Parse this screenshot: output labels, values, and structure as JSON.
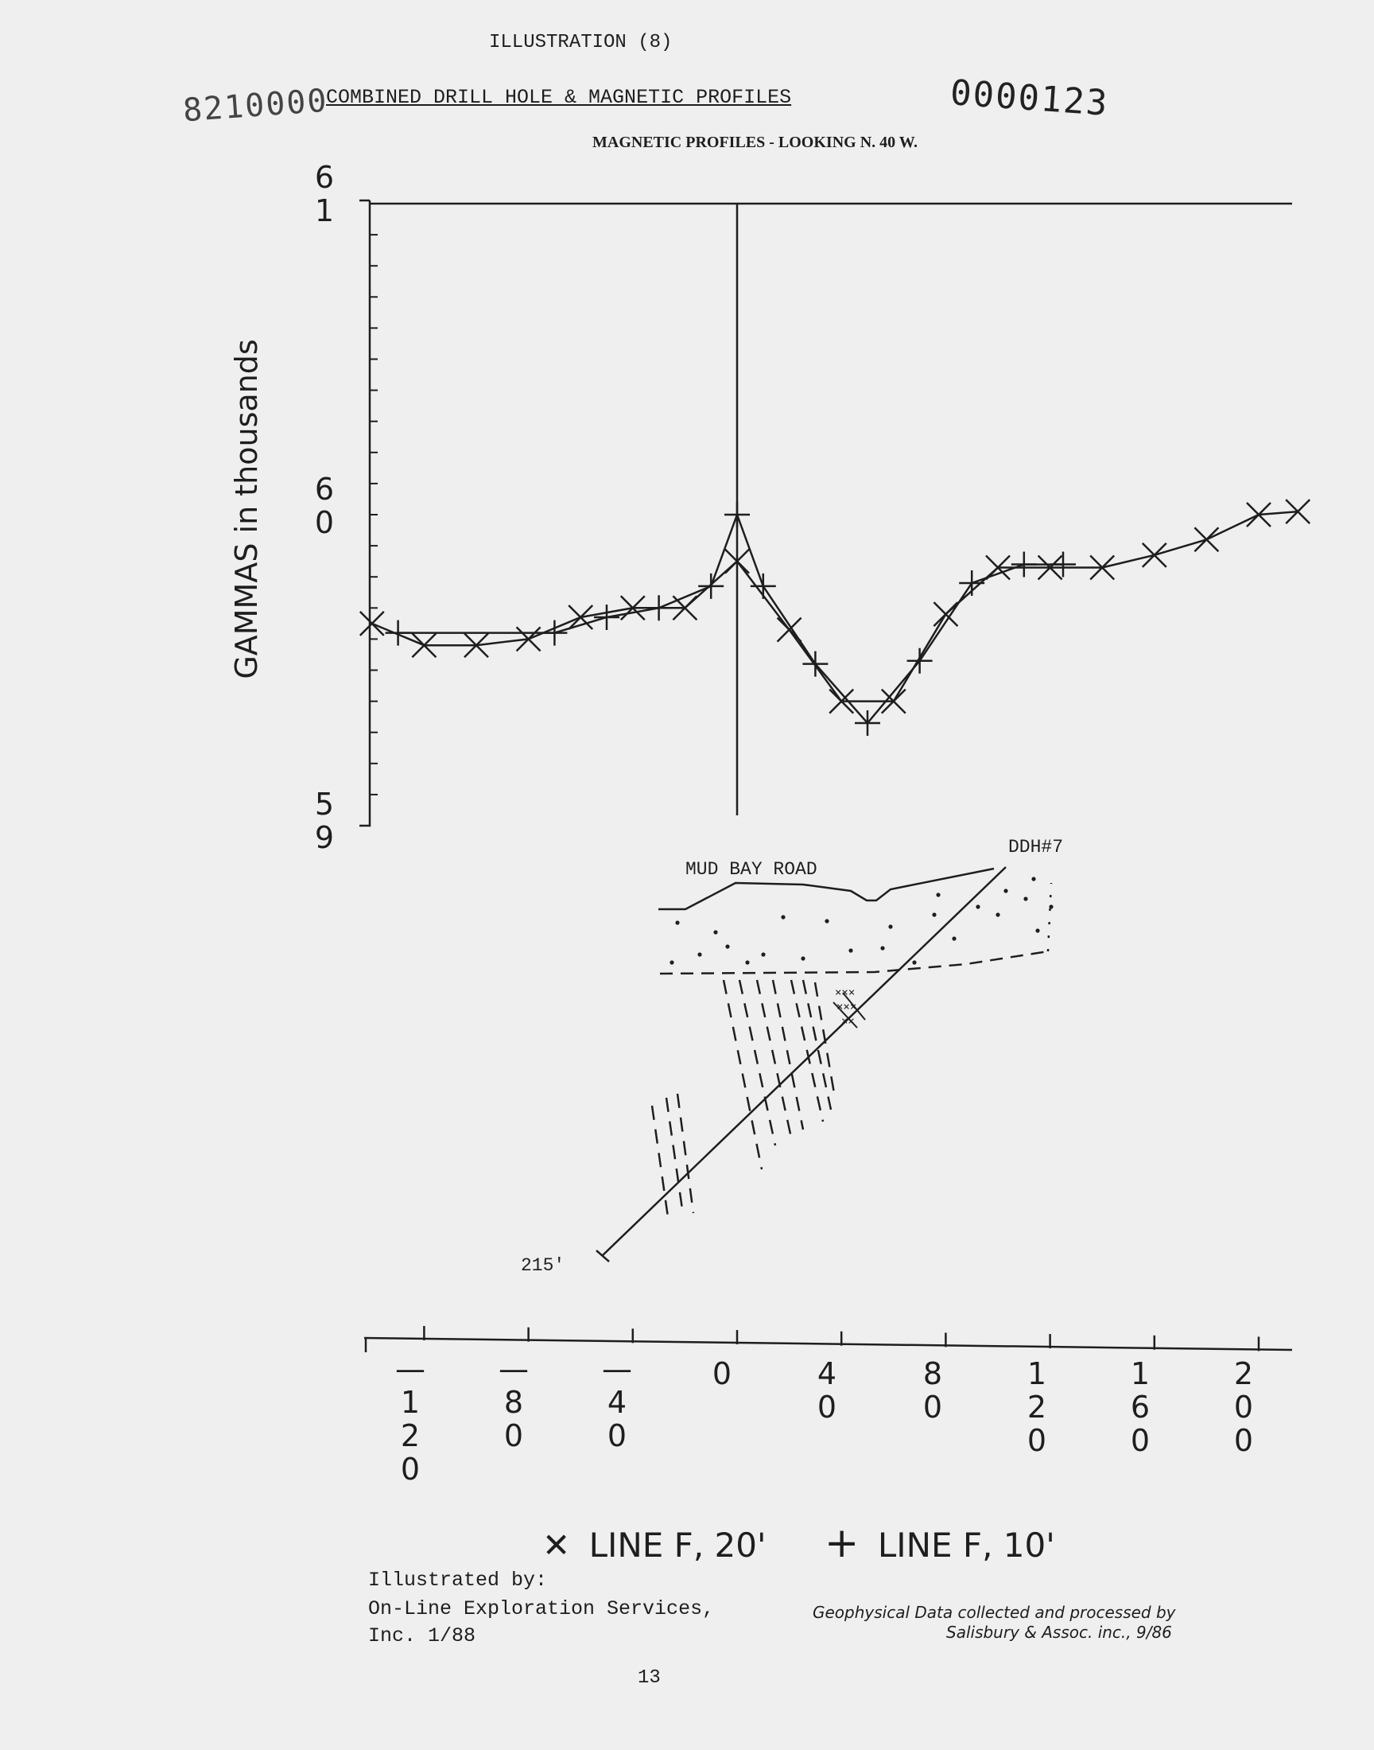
{
  "header": {
    "illustration": "ILLUSTRATION (8)",
    "title": "COMBINED DRILL HOLE & MAGNETIC PROFILES",
    "subtitle": "MAGNETIC PROFILES - LOOKING N. 40 W.",
    "stamp_left": "8210000",
    "stamp_right": "0000123"
  },
  "chart_data": {
    "type": "line",
    "title": "MAGNETIC PROFILES - LOOKING N. 40 W.",
    "ylabel": "GAMMAS in thousands",
    "y_ticks": [
      "61",
      "60",
      "59"
    ],
    "xlim": [
      -140,
      215
    ],
    "ylim": [
      59,
      61
    ],
    "x_ticks": [
      -120,
      -80,
      -40,
      0,
      40,
      80,
      120,
      160,
      200
    ],
    "x_tick_labels": [
      "-120",
      "-80",
      "-40",
      "0",
      "40",
      "80",
      "120",
      "160",
      "200"
    ],
    "grid": false,
    "legend_position": "bottom",
    "series": [
      {
        "name": "LINE F, 20'",
        "marker": "x",
        "x": [
          -140,
          -120,
          -100,
          -80,
          -60,
          -40,
          -20,
          0,
          20,
          40,
          60,
          80,
          100,
          120,
          140,
          160,
          180,
          200,
          215
        ],
        "y": [
          59.65,
          59.58,
          59.58,
          59.6,
          59.67,
          59.7,
          59.7,
          59.85,
          59.63,
          59.4,
          59.4,
          59.68,
          59.83,
          59.83,
          59.83,
          59.87,
          59.92,
          60.0,
          60.01
        ]
      },
      {
        "name": "LINE F, 10'",
        "marker": "+",
        "x": [
          -130,
          -70,
          -50,
          -30,
          -10,
          0,
          10,
          30,
          50,
          70,
          90,
          110,
          125
        ],
        "y": [
          59.62,
          59.62,
          59.67,
          59.7,
          59.77,
          60.0,
          59.77,
          59.52,
          59.33,
          59.53,
          59.78,
          59.84,
          59.84
        ]
      }
    ]
  },
  "x_tick_glyphs": [
    [
      "—",
      "1",
      "2",
      "0"
    ],
    [
      "—",
      "8",
      "0"
    ],
    [
      "—",
      "4",
      "0"
    ],
    [
      "0"
    ],
    [
      "4",
      "0"
    ],
    [
      "8",
      "0"
    ],
    [
      "1",
      "2",
      "0"
    ],
    [
      "1",
      "6",
      "0"
    ],
    [
      "2",
      "0",
      "0"
    ]
  ],
  "y_tick_glyphs": [
    [
      "6",
      "1"
    ],
    [
      "6",
      "0"
    ],
    [
      "5",
      "9"
    ]
  ],
  "section": {
    "road_label": "MUD BAY ROAD",
    "hole_label": "DDH#7",
    "depth_label": "215'"
  },
  "legend": {
    "x_symbol": "✕",
    "x_label": "LINE F, 20'",
    "plus_symbol": "+",
    "plus_label": "LINE F, 10'"
  },
  "footer": {
    "illustrated_by": "Illustrated by:",
    "company_line1": "On-Line Exploration Services,",
    "company_line2": "Inc.  1/88",
    "credit_line1": "Geophysical Data collected and processed by",
    "credit_line2": "Salisbury & Assoc. inc., 9/86",
    "page_number": "13"
  }
}
